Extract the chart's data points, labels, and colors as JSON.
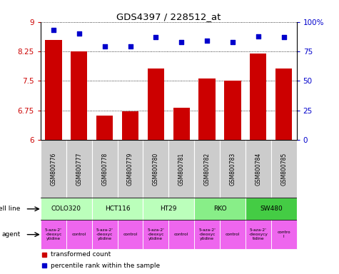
{
  "title": "GDS4397 / 228512_at",
  "samples": [
    "GSM800776",
    "GSM800777",
    "GSM800778",
    "GSM800779",
    "GSM800780",
    "GSM800781",
    "GSM800782",
    "GSM800783",
    "GSM800784",
    "GSM800785"
  ],
  "bar_values": [
    8.55,
    8.25,
    6.62,
    6.73,
    7.82,
    6.82,
    7.57,
    7.5,
    8.2,
    7.82
  ],
  "dot_values": [
    93,
    90,
    79,
    79,
    87,
    83,
    84,
    83,
    88,
    87
  ],
  "ylim_left": [
    6,
    9
  ],
  "ylim_right": [
    0,
    100
  ],
  "yticks_left": [
    6,
    6.75,
    7.5,
    8.25,
    9
  ],
  "yticks_right": [
    0,
    25,
    50,
    75,
    100
  ],
  "ytick_labels_left": [
    "6",
    "6.75",
    "7.5",
    "8.25",
    "9"
  ],
  "ytick_labels_right": [
    "0",
    "25",
    "50",
    "75",
    "100%"
  ],
  "bar_color": "#cc0000",
  "dot_color": "#0000cc",
  "cell_lines": [
    {
      "label": "COLO320",
      "start": 0,
      "end": 2,
      "color": "#bbffbb"
    },
    {
      "label": "HCT116",
      "start": 2,
      "end": 4,
      "color": "#bbffbb"
    },
    {
      "label": "HT29",
      "start": 4,
      "end": 6,
      "color": "#bbffbb"
    },
    {
      "label": "RKO",
      "start": 6,
      "end": 8,
      "color": "#88ee88"
    },
    {
      "label": "SW480",
      "start": 8,
      "end": 10,
      "color": "#44cc44"
    }
  ],
  "agents": [
    {
      "label": "5-aza-2'\n-deoxyc\nytidine",
      "start": 0,
      "end": 1,
      "color": "#ee66ee"
    },
    {
      "label": "control",
      "start": 1,
      "end": 2,
      "color": "#ee66ee"
    },
    {
      "label": "5-aza-2'\n-deoxyc\nytidine",
      "start": 2,
      "end": 3,
      "color": "#ee66ee"
    },
    {
      "label": "control",
      "start": 3,
      "end": 4,
      "color": "#ee66ee"
    },
    {
      "label": "5-aza-2'\n-deoxyc\nytidine",
      "start": 4,
      "end": 5,
      "color": "#ee66ee"
    },
    {
      "label": "control",
      "start": 5,
      "end": 6,
      "color": "#ee66ee"
    },
    {
      "label": "5-aza-2'\n-deoxyc\nytidine",
      "start": 6,
      "end": 7,
      "color": "#ee66ee"
    },
    {
      "label": "control",
      "start": 7,
      "end": 8,
      "color": "#ee66ee"
    },
    {
      "label": "5-aza-2'\n-deoxycy\ntidine",
      "start": 8,
      "end": 9,
      "color": "#ee66ee"
    },
    {
      "label": "contro\nl",
      "start": 9,
      "end": 10,
      "color": "#ee66ee"
    }
  ],
  "legend_items": [
    {
      "label": "  transformed count",
      "color": "#cc0000"
    },
    {
      "label": "  percentile rank within the sample",
      "color": "#0000cc"
    }
  ],
  "sample_bg_color": "#cccccc",
  "cell_line_label": "cell line",
  "agent_label": "agent",
  "fig_width": 4.75,
  "fig_height": 3.84,
  "dpi": 100
}
